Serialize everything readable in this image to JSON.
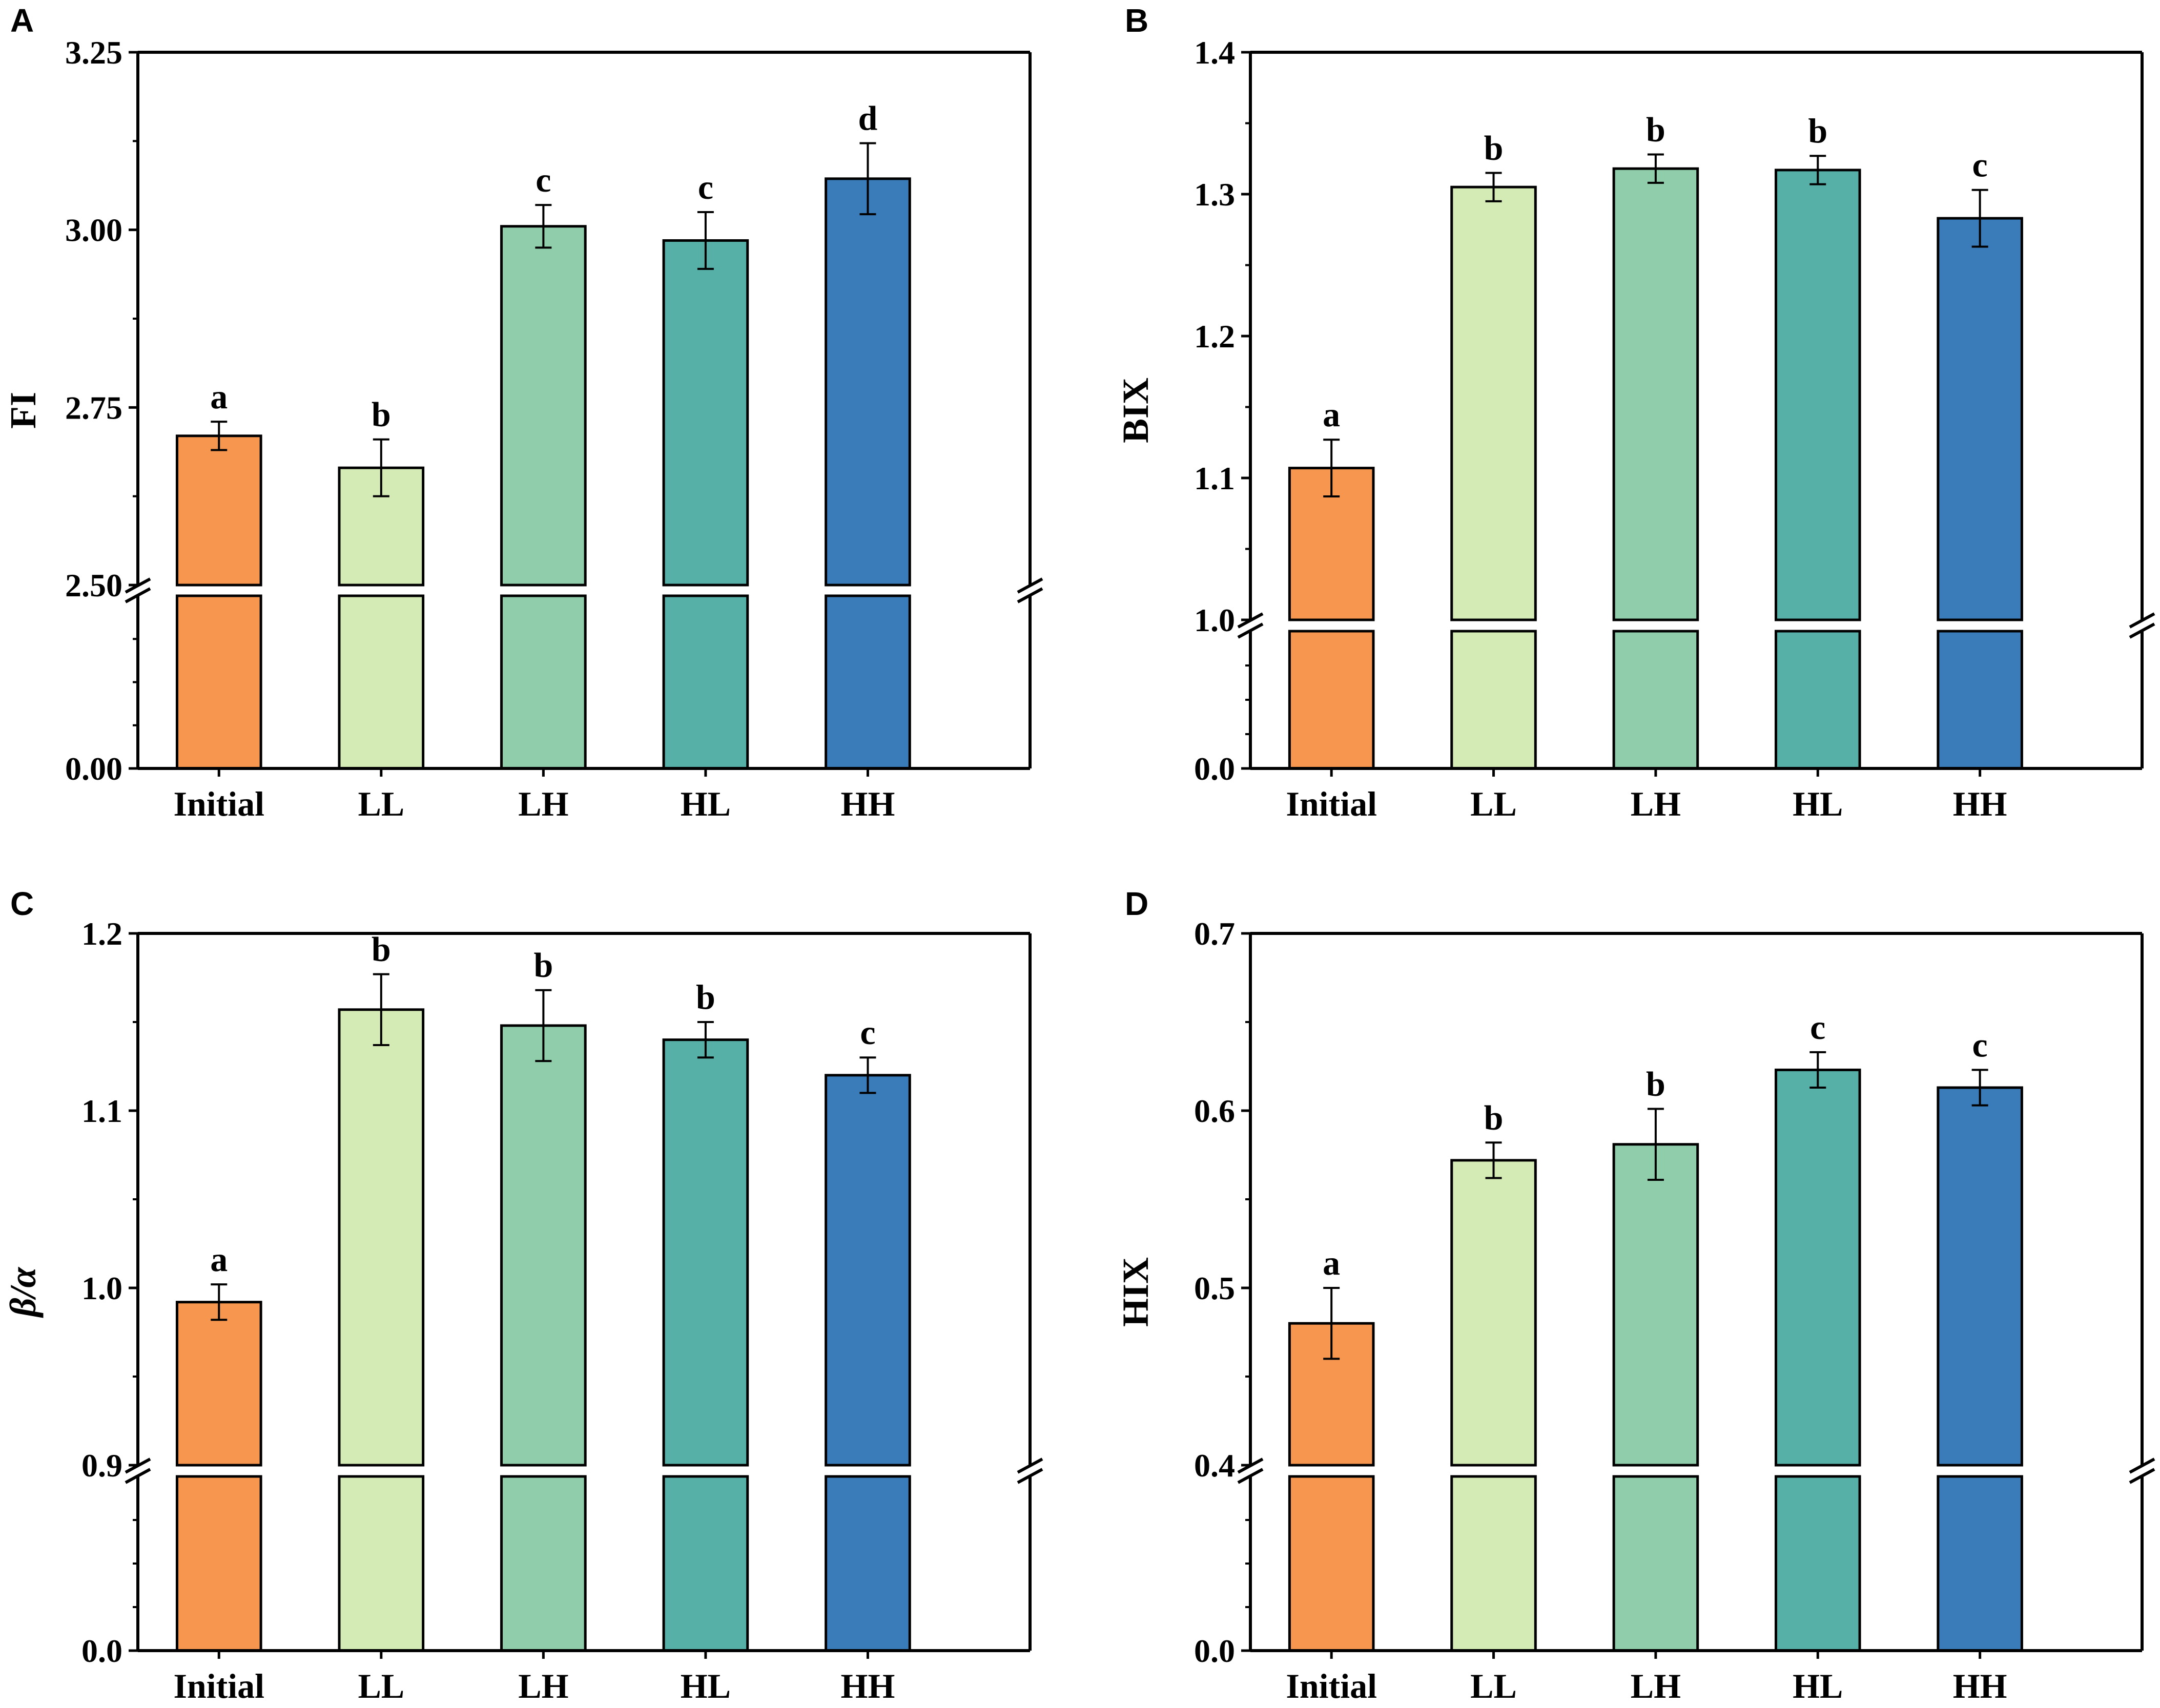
{
  "chart_data": [
    {
      "panel": "A",
      "type": "bar",
      "title": "",
      "xlabel": "",
      "ylabel": "FI",
      "ylabel_italic": false,
      "categories": [
        "Initial",
        "LL",
        "LH",
        "HL",
        "HH"
      ],
      "values": [
        2.71,
        2.665,
        3.005,
        2.985,
        3.072
      ],
      "errors": [
        0.02,
        0.04,
        0.03,
        0.04,
        0.05
      ],
      "significance": [
        "a",
        "b",
        "c",
        "c",
        "d"
      ],
      "colors": [
        "#F7964F",
        "#D5EBB6",
        "#8FCDAB",
        "#56B0A8",
        "#3A7BB9"
      ],
      "axis_break": true,
      "lower_ylim": [
        0,
        0.25
      ],
      "upper_ylim": [
        2.5,
        3.25
      ],
      "ytick_labels_lower": [
        "0.00"
      ],
      "ytick_values_lower": [
        0
      ],
      "ytick_labels_upper": [
        "2.50",
        "2.75",
        "3.00",
        "3.25"
      ],
      "ytick_values_upper": [
        2.5,
        2.75,
        3.0,
        3.25
      ]
    },
    {
      "panel": "B",
      "type": "bar",
      "title": "",
      "xlabel": "",
      "ylabel": "BIX",
      "ylabel_italic": false,
      "categories": [
        "Initial",
        "LL",
        "LH",
        "HL",
        "HH"
      ],
      "values": [
        1.107,
        1.305,
        1.318,
        1.317,
        1.283
      ],
      "errors": [
        0.02,
        0.01,
        0.01,
        0.01,
        0.02
      ],
      "significance": [
        "a",
        "b",
        "b",
        "b",
        "c"
      ],
      "colors": [
        "#F7964F",
        "#D5EBB6",
        "#8FCDAB",
        "#56B0A8",
        "#3A7BB9"
      ],
      "axis_break": true,
      "lower_ylim": [
        0,
        0.1
      ],
      "upper_ylim": [
        1.0,
        1.4
      ],
      "ytick_labels_lower": [
        "0.0"
      ],
      "ytick_values_lower": [
        0
      ],
      "ytick_labels_upper": [
        "1.0",
        "1.1",
        "1.2",
        "1.3",
        "1.4"
      ],
      "ytick_values_upper": [
        1.0,
        1.1,
        1.2,
        1.3,
        1.4
      ]
    },
    {
      "panel": "C",
      "type": "bar",
      "title": "",
      "xlabel": "",
      "ylabel": "β/α",
      "ylabel_italic": true,
      "categories": [
        "Initial",
        "LL",
        "LH",
        "HL",
        "HH"
      ],
      "values": [
        0.992,
        1.157,
        1.148,
        1.14,
        1.12
      ],
      "errors": [
        0.01,
        0.02,
        0.02,
        0.01,
        0.01
      ],
      "significance": [
        "a",
        "b",
        "b",
        "b",
        "c"
      ],
      "colors": [
        "#F7964F",
        "#D5EBB6",
        "#8FCDAB",
        "#56B0A8",
        "#3A7BB9"
      ],
      "axis_break": true,
      "lower_ylim": [
        0,
        0.1
      ],
      "upper_ylim": [
        0.9,
        1.2
      ],
      "ytick_labels_lower": [
        "0.0"
      ],
      "ytick_values_lower": [
        0
      ],
      "ytick_labels_upper": [
        "0.9",
        "1.0",
        "1.1",
        "1.2"
      ],
      "ytick_values_upper": [
        0.9,
        1.0,
        1.1,
        1.2
      ]
    },
    {
      "panel": "D",
      "type": "bar",
      "title": "",
      "xlabel": "",
      "ylabel": "HIX",
      "ylabel_italic": false,
      "categories": [
        "Initial",
        "LL",
        "LH",
        "HL",
        "HH"
      ],
      "values": [
        0.48,
        0.572,
        0.581,
        0.623,
        0.613
      ],
      "errors": [
        0.02,
        0.01,
        0.02,
        0.01,
        0.01
      ],
      "significance": [
        "a",
        "b",
        "b",
        "c",
        "c"
      ],
      "colors": [
        "#F7964F",
        "#D5EBB6",
        "#8FCDAB",
        "#56B0A8",
        "#3A7BB9"
      ],
      "axis_break": true,
      "lower_ylim": [
        0,
        0.1
      ],
      "upper_ylim": [
        0.4,
        0.7
      ],
      "ytick_labels_lower": [
        "0.0"
      ],
      "ytick_values_lower": [
        0
      ],
      "ytick_labels_upper": [
        "0.4",
        "0.5",
        "0.6",
        "0.7"
      ],
      "ytick_values_upper": [
        0.4,
        0.5,
        0.6,
        0.7
      ]
    }
  ]
}
